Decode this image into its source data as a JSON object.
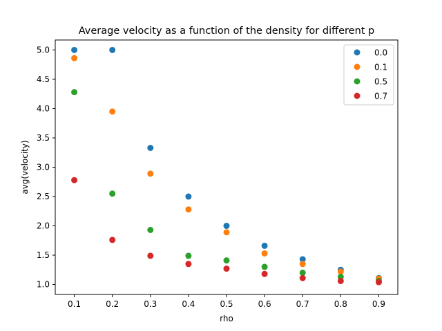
{
  "chart_data": {
    "type": "scatter",
    "title": "Average velocity as a function of the density for different p",
    "xlabel": "rho",
    "ylabel": "avg(velocity)",
    "xlim": [
      0.05,
      0.95
    ],
    "ylim": [
      0.83,
      5.17
    ],
    "xticks": [
      "0.1",
      "0.2",
      "0.3",
      "0.4",
      "0.5",
      "0.6",
      "0.7",
      "0.8",
      "0.9"
    ],
    "yticks": [
      "1.0",
      "1.5",
      "2.0",
      "2.5",
      "3.0",
      "3.5",
      "4.0",
      "4.5",
      "5.0"
    ],
    "grid": false,
    "legend_position": "top-right",
    "x": [
      0.1,
      0.2,
      0.3,
      0.4,
      0.5,
      0.6,
      0.7,
      0.8,
      0.9
    ],
    "series": [
      {
        "name": "0.0",
        "color": "#1f77b4",
        "values": [
          5.0,
          5.0,
          3.33,
          2.5,
          2.0,
          1.66,
          1.43,
          1.25,
          1.11
        ]
      },
      {
        "name": "0.1",
        "color": "#ff7f0e",
        "values": [
          4.86,
          3.95,
          2.89,
          2.28,
          1.89,
          1.53,
          1.35,
          1.22,
          1.1
        ]
      },
      {
        "name": "0.5",
        "color": "#2ca02c",
        "values": [
          4.28,
          2.55,
          1.93,
          1.49,
          1.41,
          1.3,
          1.2,
          1.13,
          1.06
        ]
      },
      {
        "name": "0.7",
        "color": "#d62728",
        "values": [
          2.78,
          1.76,
          1.49,
          1.35,
          1.27,
          1.18,
          1.11,
          1.06,
          1.04
        ]
      }
    ]
  }
}
